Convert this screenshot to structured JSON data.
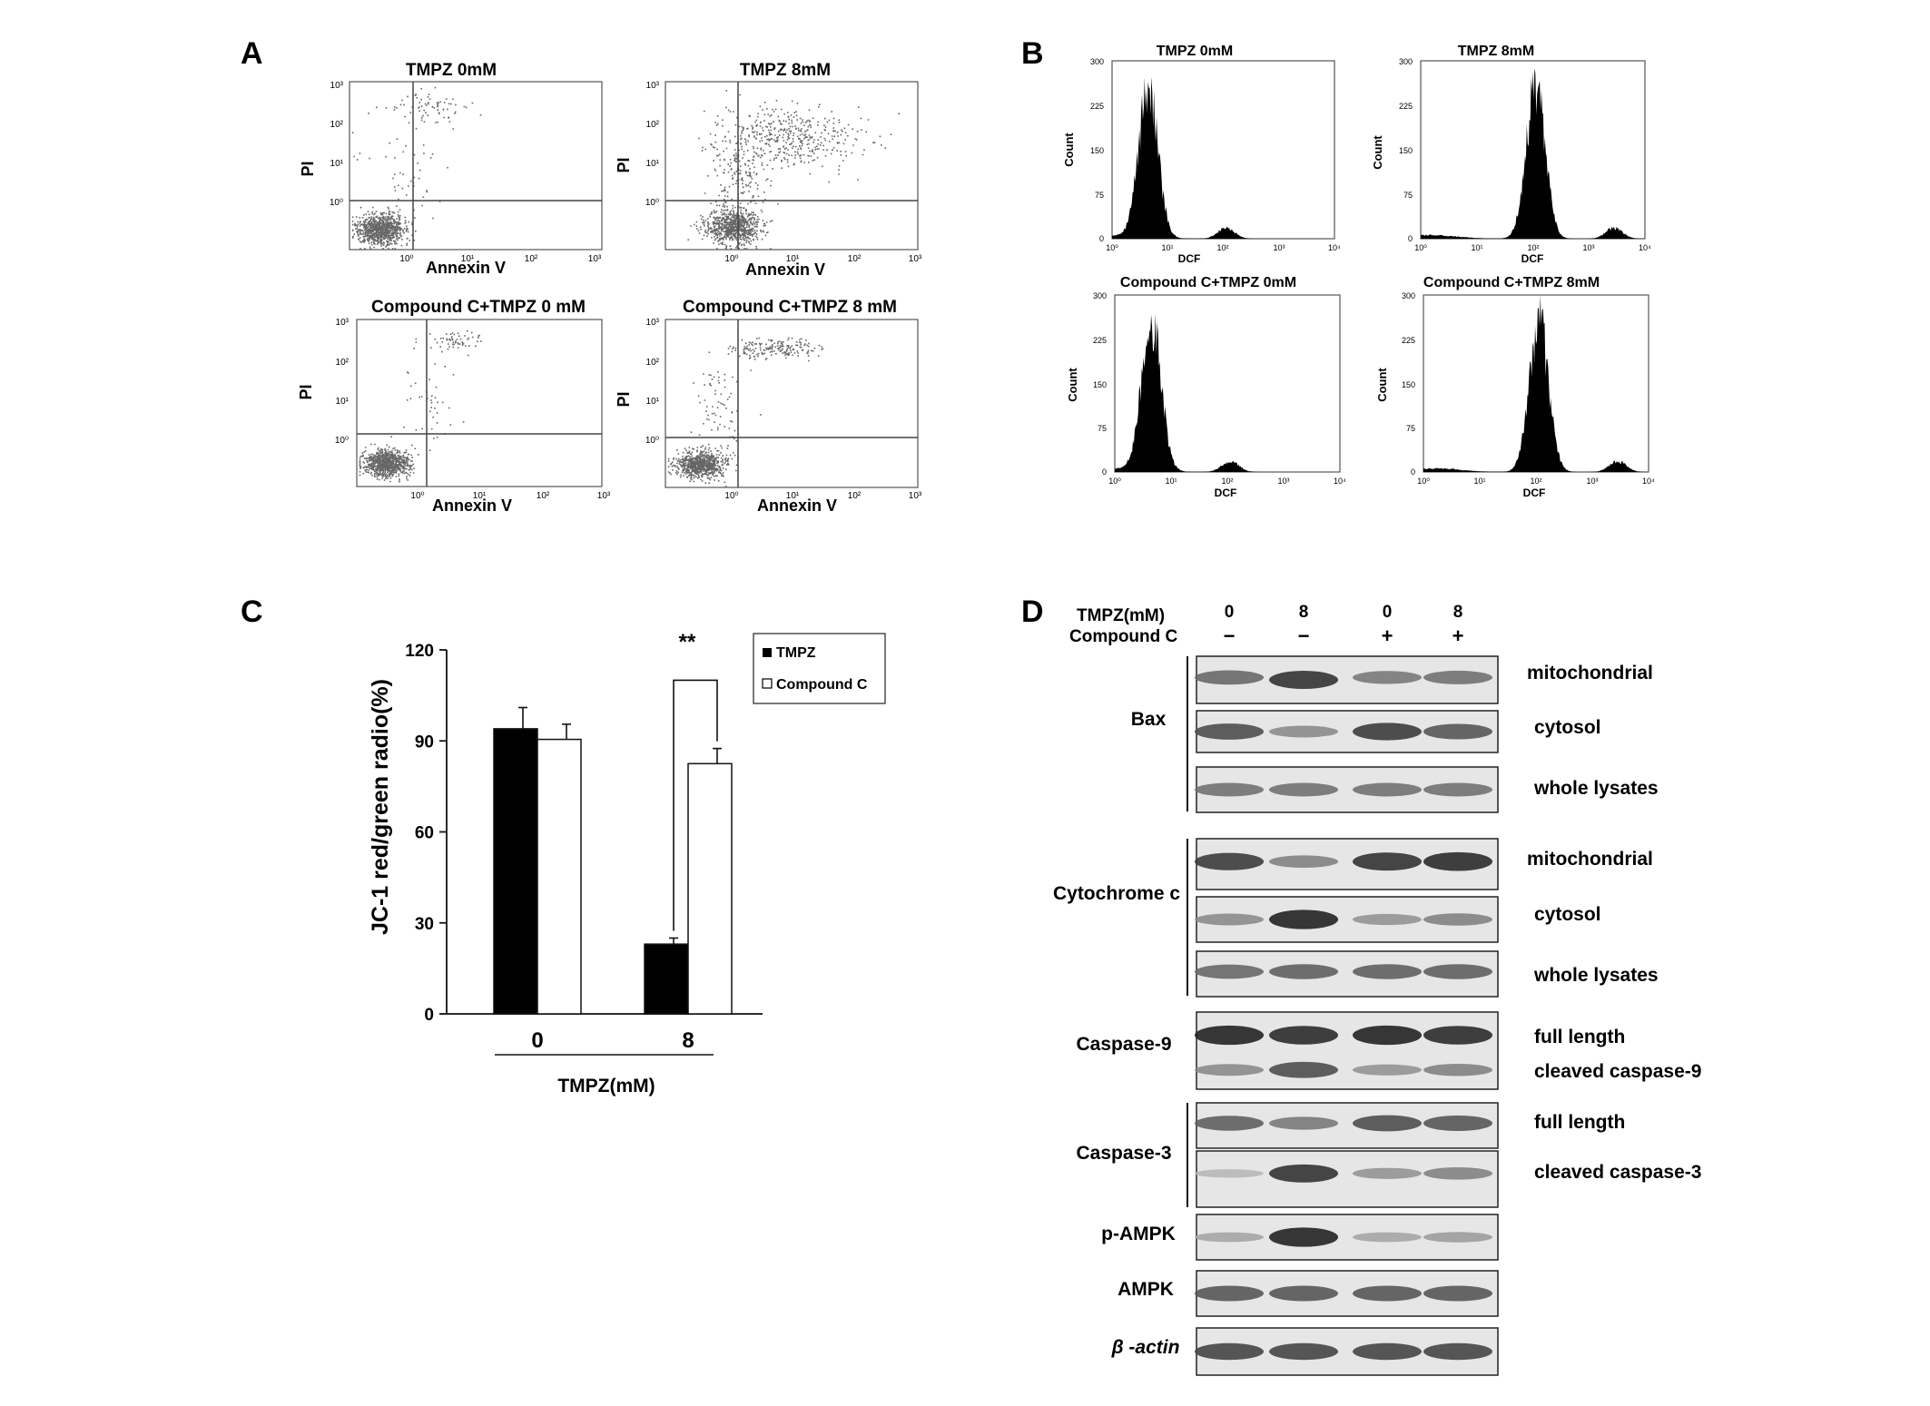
{
  "panels": {
    "A": {
      "letter": "A",
      "plots": [
        {
          "title": "TMPZ 0mM",
          "xlabel": "Annexin V",
          "ylabel": "PI"
        },
        {
          "title": "TMPZ 8mM",
          "xlabel": "Annexin V",
          "ylabel": "PI"
        },
        {
          "title": "Compound C+TMPZ 0 mM",
          "xlabel": "Annexin V",
          "ylabel": "PI"
        },
        {
          "title": "Compound C+TMPZ 8 mM",
          "xlabel": "Annexin V",
          "ylabel": "PI"
        }
      ],
      "tick_labels": [
        "10⁰",
        "10¹",
        "10²",
        "10³"
      ]
    },
    "B": {
      "letter": "B",
      "plots": [
        {
          "title": "TMPZ 0mM",
          "xlabel": "DCF",
          "ylabel": "Count",
          "peak_log10": 0.65,
          "color": "#000000"
        },
        {
          "title": "TMPZ 8mM",
          "xlabel": "DCF",
          "ylabel": "Count",
          "peak_log10": 2.05,
          "color": "#000000"
        },
        {
          "title": "Compound C+TMPZ 0mM",
          "xlabel": "DCF",
          "ylabel": "Count",
          "peak_log10": 0.65,
          "color": "#000000"
        },
        {
          "title": "Compound C+TMPZ 8mM",
          "xlabel": "DCF",
          "ylabel": "Count",
          "peak_log10": 2.05,
          "color": "#000000"
        }
      ],
      "y_ticks": [
        "0",
        "75",
        "150",
        "225",
        "300"
      ],
      "x_ticks": [
        "10⁰",
        "10¹",
        "10²",
        "10³",
        "10⁴"
      ]
    },
    "C": {
      "letter": "C"
    },
    "D": {
      "letter": "D",
      "header": {
        "tmpz_label": "TMPZ(mM)",
        "compound_label": "Compound C",
        "tmpz_values": [
          "0",
          "8",
          "0",
          "8"
        ],
        "compound_values": [
          "−",
          "−",
          "+",
          "+"
        ]
      },
      "groups": [
        {
          "name": "Bax",
          "rows": [
            "mitochondrial",
            "cytosol",
            "whole lysates"
          ]
        },
        {
          "name": "Cytochrome  c",
          "rows": [
            "mitochondrial",
            "cytosol",
            "whole lysates"
          ]
        },
        {
          "name": "Caspase-9",
          "rows": [
            "full length",
            "cleaved caspase-9"
          ]
        },
        {
          "name": "Caspase-3",
          "rows": [
            "full length",
            "cleaved caspase-3"
          ]
        },
        {
          "name": "p-AMPK",
          "rows": []
        },
        {
          "name": "AMPK",
          "rows": []
        },
        {
          "name": "β -actin",
          "rows": []
        }
      ]
    }
  },
  "chart_data": [
    {
      "type": "bar",
      "panel": "C",
      "categories": [
        "0",
        "8"
      ],
      "xlabel": "TMPZ(mM)",
      "ylabel": "JC-1  red/green radio(%)",
      "ylim": [
        0,
        120
      ],
      "yticks": [
        0,
        30,
        60,
        90,
        120
      ],
      "series": [
        {
          "name": "TMPZ",
          "values": [
            94,
            23
          ],
          "errors": [
            7,
            2
          ],
          "color": "#000000"
        },
        {
          "name": "Compound C",
          "values": [
            90.5,
            82.5
          ],
          "errors": [
            5,
            5
          ],
          "color": "#ffffff"
        }
      ],
      "annotation": "**",
      "legend_position": "top-right"
    }
  ]
}
